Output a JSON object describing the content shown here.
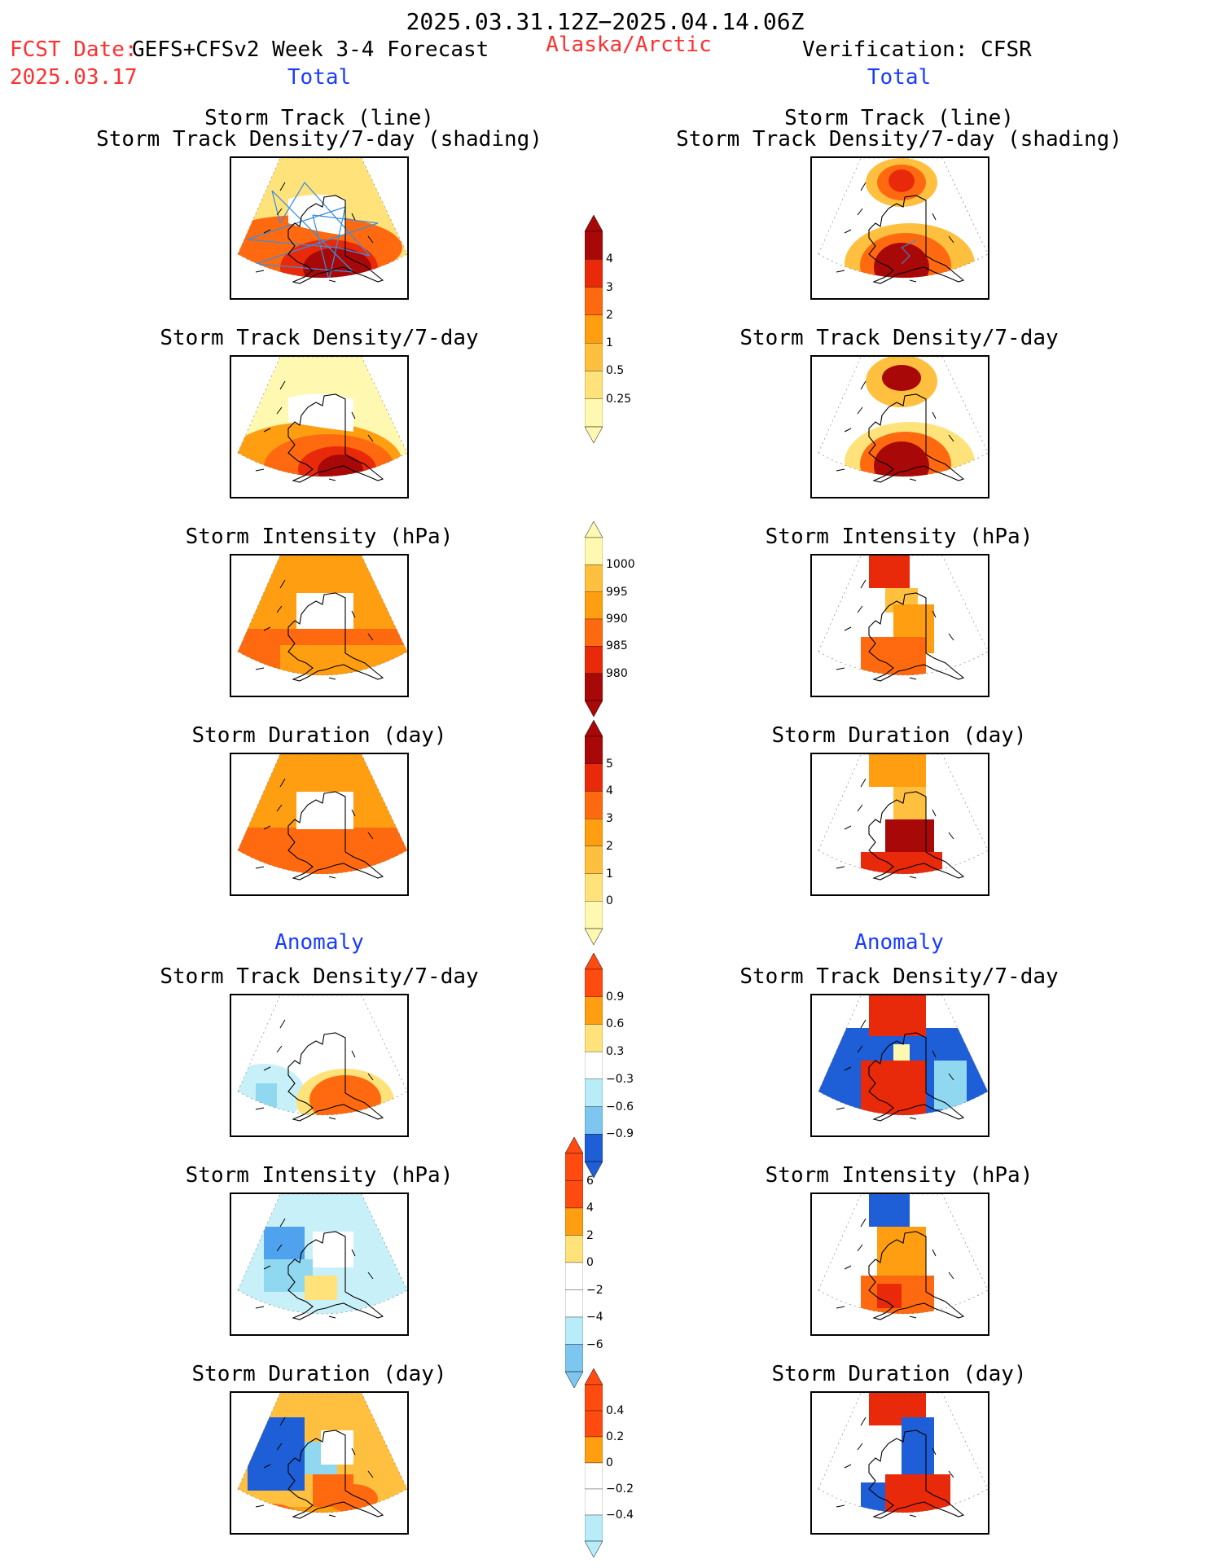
{
  "header": {
    "period": "2025.03.31.12Z−2025.04.14.06Z",
    "fcst_label": "FCST Date:",
    "fcst_model": "GEFS+CFSv2 Week 3-4 Forecast",
    "fcst_date": "2025.03.17",
    "region": "Alaska/Arctic",
    "verification": "Verification: CFSR"
  },
  "sections": {
    "total": "Total",
    "anomaly": "Anomaly"
  },
  "panel_titles": {
    "track_line": "Storm Track (line)",
    "track_shading": "Storm Track Density/7-day (shading)",
    "density": "Storm Track Density/7-day",
    "intensity": "Storm Intensity (hPa)",
    "duration": "Storm Duration (day)"
  },
  "colors": {
    "warm": [
      "#fff8b0",
      "#ffe27a",
      "#ffc040",
      "#ff9e10",
      "#ff6a10",
      "#e82a0a",
      "#a80808"
    ],
    "cool": [
      "#c8f0f8",
      "#90d8f0",
      "#4ea2ee",
      "#1e5ed6"
    ],
    "track_line": "#3c8ee0",
    "anom_pos": [
      "#ffe27a",
      "#ff9e10",
      "#ff4a10"
    ],
    "anom_neg": [
      "#b8ecf8",
      "#7cc6f0",
      "#1e5ed6"
    ]
  },
  "colorbars": [
    {
      "name": "density-total",
      "labels": [
        "4",
        "3",
        "2",
        "1",
        "0.5",
        "0.25"
      ]
    },
    {
      "name": "intensity-total",
      "labels": [
        "1000",
        "995",
        "990",
        "985",
        "980"
      ]
    },
    {
      "name": "duration-total",
      "labels": [
        "5",
        "4",
        "3",
        "2",
        "1",
        "0"
      ]
    },
    {
      "name": "density-anom",
      "labels": [
        "0.9",
        "0.6",
        "0.3",
        "−0.3",
        "−0.6",
        "−0.9"
      ]
    },
    {
      "name": "intensity-anom",
      "labels": [
        "6",
        "4",
        "2",
        "0",
        "−2",
        "−4",
        "−6"
      ]
    },
    {
      "name": "duration-anom",
      "labels": [
        "0.4",
        "0.2",
        "0",
        "−0.2",
        "−0.4"
      ]
    }
  ]
}
